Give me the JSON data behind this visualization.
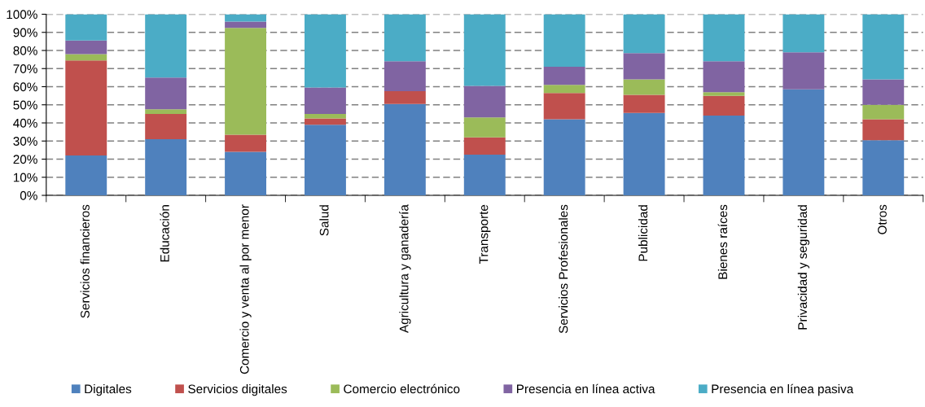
{
  "chart_data": {
    "type": "bar",
    "stacked": true,
    "categories": [
      "Servicios financieros",
      "Educación",
      "Comercio y venta al por menor",
      "Salud",
      "Agricultura y ganadería",
      "Transporte",
      "Servicios Profesionales",
      "Publicidad",
      "Bienes raíces",
      "Privacidad y seguridad",
      "Otros"
    ],
    "series": [
      {
        "name": "Digitales",
        "color": "#4f81bd",
        "values": [
          22,
          31,
          24,
          39,
          50.5,
          22.5,
          42,
          45.5,
          44,
          58.5,
          30.5
        ]
      },
      {
        "name": "Servicios digitales",
        "color": "#c0504d",
        "values": [
          52.5,
          14,
          9.5,
          3.5,
          7,
          9.5,
          14.5,
          10,
          11,
          0,
          11.5
        ]
      },
      {
        "name": "Comercio electrónico",
        "color": "#9bbb59",
        "values": [
          3.5,
          2.5,
          59,
          2.5,
          0,
          11,
          4.5,
          8.5,
          2,
          0,
          8
        ]
      },
      {
        "name": "Presencia en línea activa",
        "color": "#8064a2",
        "values": [
          7.5,
          17.5,
          3.5,
          14.5,
          16.5,
          17.5,
          10,
          14.5,
          17,
          20.5,
          14
        ]
      },
      {
        "name": "Presencia en línea pasiva",
        "color": "#4bacc6",
        "values": [
          14.5,
          35,
          4,
          40.5,
          26,
          39.5,
          29,
          21.5,
          26,
          21,
          36
        ]
      }
    ],
    "ylim": [
      0,
      100
    ],
    "yticks": [
      {
        "value": 0,
        "label": "0%"
      },
      {
        "value": 10,
        "label": "10%"
      },
      {
        "value": 20,
        "label": "20%"
      },
      {
        "value": 30,
        "label": "30%"
      },
      {
        "value": 40,
        "label": "40%"
      },
      {
        "value": 50,
        "label": "50%"
      },
      {
        "value": 60,
        "label": "60%"
      },
      {
        "value": 70,
        "label": "70%"
      },
      {
        "value": 80,
        "label": "80%"
      },
      {
        "value": 90,
        "label": "90%"
      },
      {
        "value": 100,
        "label": "100%"
      }
    ],
    "grid": "y",
    "legend": "bottom"
  }
}
